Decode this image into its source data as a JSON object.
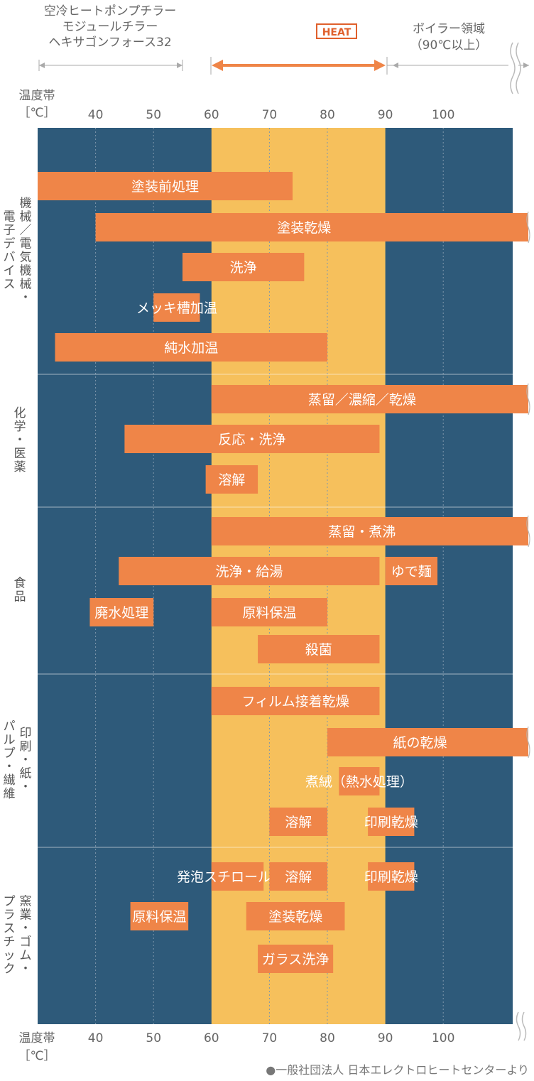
{
  "header": {
    "left_label": [
      "空冷ヒートポンプチラー",
      "モジュールチラー",
      "ヘキサゴンフォース32"
    ],
    "heat_logo": "HEAT",
    "right_label": [
      "ボイラー領域",
      "（90℃以上）"
    ]
  },
  "axis_label_top": [
    "温度帯",
    "［℃］"
  ],
  "axis_label_bottom": [
    "温度帯",
    "［℃］"
  ],
  "source": "●一般社団法人 日本エレクトロヒートセンターより",
  "colors": {
    "background": "#2e5a7a",
    "highlight": "#f6c05c",
    "bar": "#ef8548",
    "arrow": "#ef8548",
    "text": "#555555",
    "bar_text": "#ffffff"
  },
  "chart_data": {
    "type": "bar",
    "orientation": "horizontal-range",
    "xlim": [
      30,
      112
    ],
    "ticks": [
      40,
      50,
      60,
      70,
      80,
      90,
      100
    ],
    "highlight_range": [
      60,
      90
    ],
    "header_ranges": {
      "chiller": [
        30,
        55
      ],
      "heat": [
        60,
        90
      ],
      "boiler": [
        90,
        112
      ]
    },
    "groups": [
      {
        "name": "機械／電気機械・電子デバイス",
        "label_lines": [
          "機械／電気機械・",
          "電子デバイス"
        ],
        "bars": [
          {
            "label": "塗装前処理",
            "start": 30,
            "end": 74
          },
          {
            "label": "塗装乾燥",
            "start": 40,
            "end": 112,
            "open_end": true
          },
          {
            "label": "洗浄",
            "start": 55,
            "end": 76
          },
          {
            "label": "メッキ槽加温",
            "start": 50,
            "end": 58
          },
          {
            "label": "純水加温",
            "start": 33,
            "end": 80
          }
        ]
      },
      {
        "name": "化学・医薬",
        "label_lines": [
          "化学・医薬"
        ],
        "bars": [
          {
            "label": "蒸留／濃縮／乾燥",
            "start": 60,
            "end": 112,
            "open_end": true
          },
          {
            "label": "反応・洗浄",
            "start": 45,
            "end": 89
          },
          {
            "label": "溶解",
            "start": 59,
            "end": 68
          }
        ]
      },
      {
        "name": "食品",
        "label_lines": [
          "食品"
        ],
        "bars": [
          {
            "label": "蒸留・煮沸",
            "start": 60,
            "end": 112,
            "open_end": true
          },
          {
            "label": "洗浄・給湯",
            "start": 44,
            "end": 89
          },
          {
            "label": "ゆで麺",
            "start": 90,
            "end": 99
          },
          {
            "label": "廃水処理",
            "start": 39,
            "end": 50
          },
          {
            "label": "原料保温",
            "start": 60,
            "end": 80
          },
          {
            "label": "殺菌",
            "start": 68,
            "end": 89
          }
        ]
      },
      {
        "name": "印刷・紙・パルプ・繊維",
        "label_lines": [
          "印刷・紙・",
          "パルプ・繊維"
        ],
        "bars": [
          {
            "label": "フィルム接着乾燥",
            "start": 60,
            "end": 89
          },
          {
            "label": "紙の乾燥",
            "start": 80,
            "end": 112,
            "open_end": true
          },
          {
            "label": "煮絨（熱水処理）",
            "start": 82,
            "end": 89
          },
          {
            "label": "溶解",
            "start": 70,
            "end": 80
          },
          {
            "label": "印刷乾燥",
            "start": 87,
            "end": 95
          }
        ]
      },
      {
        "name": "窯業・ゴム・プラスチック",
        "label_lines": [
          "窯業・ゴム・",
          "プラスチック"
        ],
        "bars": [
          {
            "label": "発泡スチロール乾燥",
            "start": 60,
            "end": 69
          },
          {
            "label": "溶解",
            "start": 70,
            "end": 80
          },
          {
            "label": "印刷乾燥",
            "start": 87,
            "end": 95
          },
          {
            "label": "原料保温",
            "start": 46,
            "end": 56
          },
          {
            "label": "塗装乾燥",
            "start": 66,
            "end": 83
          },
          {
            "label": "ガラス洗浄",
            "start": 68,
            "end": 81
          }
        ]
      }
    ]
  }
}
